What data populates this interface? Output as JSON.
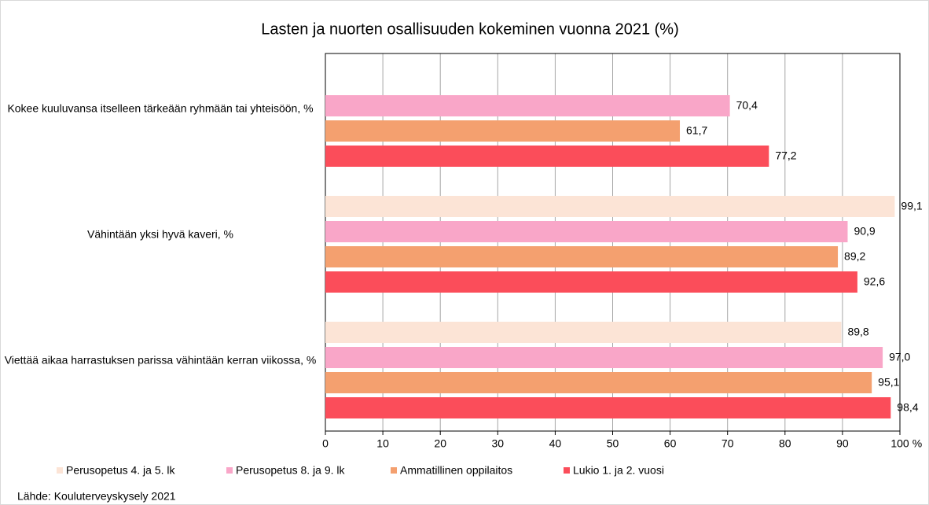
{
  "chart_data": {
    "type": "hbar",
    "title": "Lasten ja nuorten osallisuuden kokeminen vuonna 2021 (%)",
    "categories": [
      "Kokee kuuluvansa itselleen tärkeään ryhmään tai yhteisöön, %",
      "Vähintään yksi hyvä kaveri, %",
      "Viettää aikaa harrastuksen parissa vähintään kerran viikossa, %"
    ],
    "series": [
      {
        "name": "Perusopetus 4. ja 5. lk",
        "color": "#fce4d6",
        "values": [
          null,
          99.1,
          89.8
        ],
        "value_labels": [
          null,
          "99,1",
          "89,8"
        ]
      },
      {
        "name": "Perusopetus 8. ja 9. lk",
        "color": "#f9a6c8",
        "values": [
          70.4,
          90.9,
          97.0
        ],
        "value_labels": [
          "70,4",
          "90,9",
          "97,0"
        ]
      },
      {
        "name": "Ammatillinen oppilaitos",
        "color": "#f4a06f",
        "values": [
          61.7,
          89.2,
          95.1
        ],
        "value_labels": [
          "61,7",
          "89,2",
          "95,1"
        ]
      },
      {
        "name": "Lukio 1. ja 2. vuosi",
        "color": "#fb4d5a",
        "values": [
          77.2,
          92.6,
          98.4
        ],
        "value_labels": [
          "77,2",
          "92,6",
          "98,4"
        ]
      }
    ],
    "xlim": [
      0,
      100
    ],
    "xticks": [
      0,
      10,
      20,
      30,
      40,
      50,
      60,
      70,
      80,
      90,
      100
    ],
    "x_unit": "%",
    "grid": true,
    "legend": "bottom",
    "source": "Lähde: Kouluterveyskysely  2021"
  }
}
